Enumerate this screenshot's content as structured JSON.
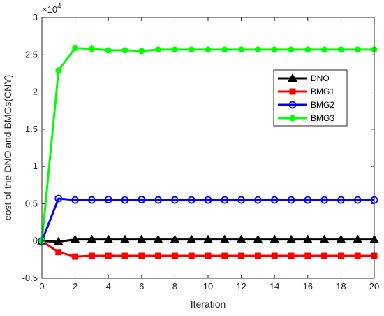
{
  "chart_data": {
    "type": "line",
    "xlabel": "Iteration",
    "ylabel": "cost of the DNO and BMGs(CNY)",
    "exponent_label": "×10",
    "exponent_power": "4",
    "xlim": [
      0,
      20
    ],
    "ylim": [
      -0.5,
      3
    ],
    "xticks": [
      "0",
      "2",
      "4",
      "6",
      "8",
      "10",
      "12",
      "14",
      "16",
      "18",
      "20"
    ],
    "yticks": [
      "-0.5",
      "0",
      "0.5",
      "1",
      "1.5",
      "2",
      "2.5",
      "3"
    ],
    "x": [
      0,
      1,
      2,
      3,
      4,
      5,
      6,
      7,
      8,
      9,
      10,
      11,
      12,
      13,
      14,
      15,
      16,
      17,
      18,
      19,
      20
    ],
    "legend_position": "upper right, inside axes",
    "grid": false,
    "series": [
      {
        "name": "DNO",
        "color": "#000000",
        "marker": "triangle",
        "values": [
          0,
          -0.01,
          0.02,
          0.02,
          0.02,
          0.02,
          0.02,
          0.02,
          0.02,
          0.02,
          0.02,
          0.02,
          0.02,
          0.02,
          0.02,
          0.02,
          0.02,
          0.02,
          0.02,
          0.02,
          0.02
        ]
      },
      {
        "name": "BMG1",
        "color": "#ff0000",
        "marker": "square",
        "values": [
          0,
          -0.15,
          -0.21,
          -0.2,
          -0.2,
          -0.2,
          -0.2,
          -0.2,
          -0.2,
          -0.2,
          -0.2,
          -0.2,
          -0.2,
          -0.2,
          -0.2,
          -0.2,
          -0.2,
          -0.2,
          -0.2,
          -0.2,
          -0.2
        ]
      },
      {
        "name": "BMG2",
        "color": "#0000ff",
        "marker": "circle",
        "values": [
          0,
          0.57,
          0.55,
          0.55,
          0.555,
          0.55,
          0.555,
          0.55,
          0.55,
          0.55,
          0.55,
          0.55,
          0.55,
          0.55,
          0.55,
          0.55,
          0.55,
          0.55,
          0.55,
          0.55,
          0.55
        ]
      },
      {
        "name": "BMG3",
        "color": "#00ff00",
        "marker": "dot",
        "values": [
          0,
          2.29,
          2.59,
          2.58,
          2.56,
          2.56,
          2.55,
          2.57,
          2.57,
          2.57,
          2.57,
          2.57,
          2.57,
          2.57,
          2.57,
          2.57,
          2.57,
          2.57,
          2.57,
          2.57,
          2.57
        ]
      }
    ]
  }
}
